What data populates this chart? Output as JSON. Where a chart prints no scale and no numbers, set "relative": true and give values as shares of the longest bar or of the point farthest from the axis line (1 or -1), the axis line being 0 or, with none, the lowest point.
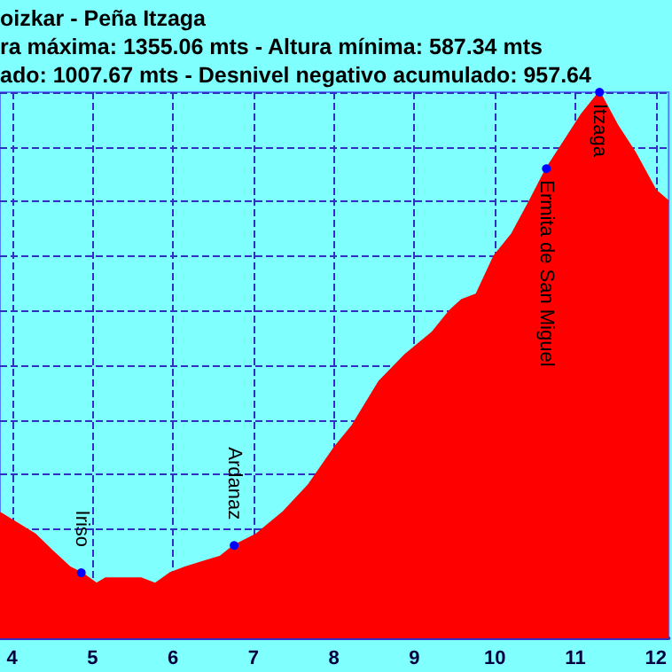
{
  "chart_data": {
    "type": "area",
    "title": "oizkar - Peña Itzaga",
    "subtitle": "ra máxima: 1355.06 mts - Altura mínima: 587.34 mts\nado: 1007.67 mts - Desnivel negativo acumulado: 957.64",
    "relative": true,
    "x": [
      3.85,
      4.07,
      4.29,
      4.5,
      4.72,
      4.86,
      5.05,
      5.16,
      5.38,
      5.6,
      5.78,
      5.97,
      6.15,
      6.37,
      6.59,
      6.76,
      7.03,
      7.36,
      7.68,
      8.01,
      8.23,
      8.56,
      8.89,
      9.22,
      9.44,
      9.59,
      9.77,
      9.99,
      10.21,
      10.43,
      10.64,
      10.86,
      11.08,
      11.3,
      11.52,
      11.74,
      12.0,
      12.16
    ],
    "series": [
      {
        "color": "#ff0000",
        "values": [
          0.23,
          0.21,
          0.19,
          0.16,
          0.13,
          0.12,
          0.1,
          0.11,
          0.11,
          0.11,
          0.1,
          0.12,
          0.13,
          0.14,
          0.15,
          0.17,
          0.19,
          0.23,
          0.28,
          0.35,
          0.39,
          0.47,
          0.52,
          0.56,
          0.6,
          0.62,
          0.63,
          0.7,
          0.74,
          0.8,
          0.86,
          0.91,
          0.96,
          1,
          0.94,
          0.89,
          0.82,
          0.8
        ]
      }
    ],
    "xlim": [
      3.85,
      12.16
    ],
    "xticks": [
      4,
      5,
      6,
      7,
      8,
      9,
      10,
      11,
      12
    ],
    "grid": true,
    "marker": "none",
    "annotations": [
      {
        "text": "Iriso",
        "x": 4.86,
        "y": 0.12
      },
      {
        "text": "Ardanaz",
        "x": 6.76,
        "y": 0.17
      },
      {
        "text": "Ermita de San Miguel",
        "x": 10.64,
        "y": 0.86
      },
      {
        "text": "Itzaga",
        "x": 11.3,
        "y": 1
      }
    ]
  }
}
